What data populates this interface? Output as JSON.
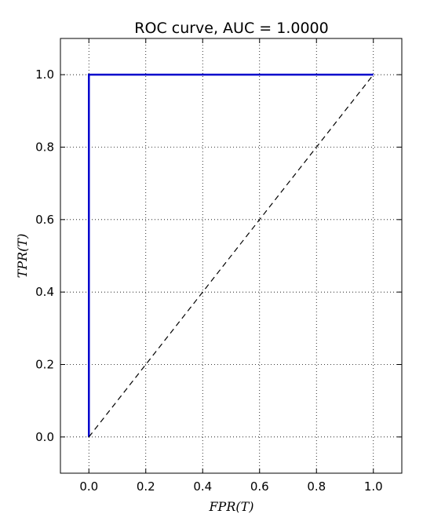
{
  "chart_data": {
    "type": "line",
    "title": "ROC curve, AUC = 1.0000",
    "xlabel": "FPR(T)",
    "ylabel": "TPR(T)",
    "xlim": [
      -0.1,
      1.1
    ],
    "ylim": [
      -0.1,
      1.1
    ],
    "xticks": [
      "0.0",
      "0.2",
      "0.4",
      "0.6",
      "0.8",
      "1.0"
    ],
    "yticks": [
      "0.0",
      "0.2",
      "0.4",
      "0.6",
      "0.8",
      "1.0"
    ],
    "grid": true,
    "series": [
      {
        "x": [
          0.0,
          0.0,
          1.0
        ],
        "y": [
          0.0,
          1.0,
          1.0
        ],
        "color": "#0000cc",
        "style": "solid"
      },
      {
        "x": [
          0.0,
          1.0
        ],
        "y": [
          0.0,
          1.0
        ],
        "color": "#000000",
        "style": "dashed"
      }
    ]
  }
}
